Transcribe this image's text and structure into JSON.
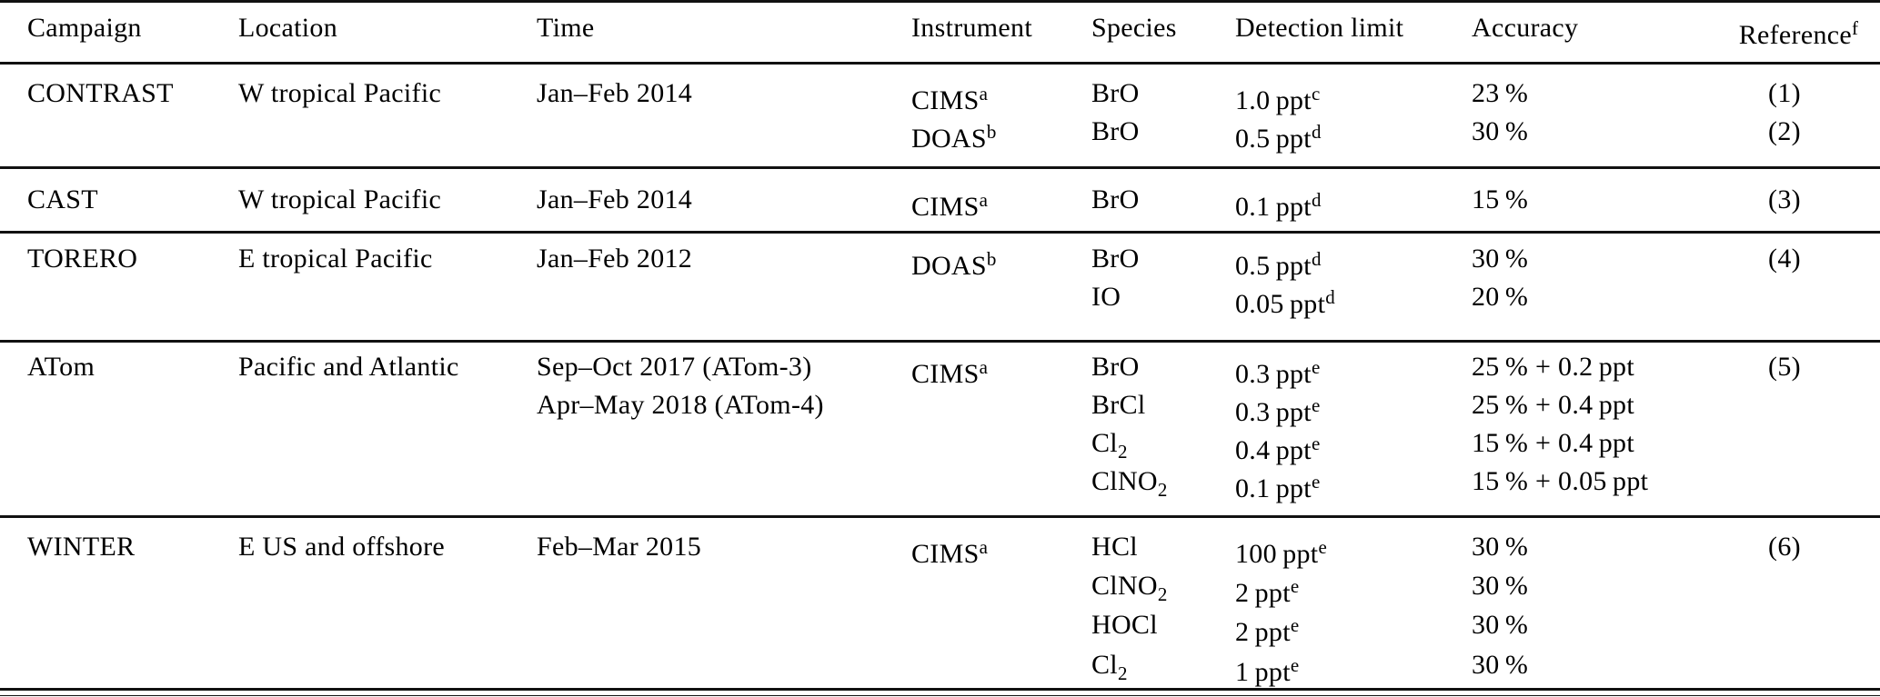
{
  "page": {
    "background": "#ffffff",
    "text_color": "#000000",
    "rule_color": "#111111"
  },
  "table": {
    "header": {
      "campaign": "Campaign",
      "location": "Location",
      "time": "Time",
      "instrument": "Instrument",
      "species": "Species",
      "detection_limit": "Detection limit",
      "accuracy": "Accuracy",
      "reference": "Reference",
      "reference_sup": "f"
    },
    "blocks": [
      {
        "campaign": "CONTRAST",
        "location": "W tropical Pacific",
        "time_lines": [
          "Jan–Feb 2014"
        ],
        "rows": [
          {
            "instrument": "CIMS",
            "instrument_sup": "a",
            "species": "BrO",
            "species_sub": "",
            "limit": "1.0 ppt",
            "limit_sup": "c",
            "accuracy": "23 %",
            "reference": "(1)"
          },
          {
            "instrument": "DOAS",
            "instrument_sup": "b",
            "species": "BrO",
            "species_sub": "",
            "limit": "0.5 ppt",
            "limit_sup": "d",
            "accuracy": "30 %",
            "reference": "(2)"
          }
        ]
      },
      {
        "campaign": "CAST",
        "location": "W tropical Pacific",
        "time_lines": [
          "Jan–Feb 2014"
        ],
        "rows": [
          {
            "instrument": "CIMS",
            "instrument_sup": "a",
            "species": "BrO",
            "species_sub": "",
            "limit": "0.1 ppt",
            "limit_sup": "d",
            "accuracy": "15 %",
            "reference": "(3)"
          }
        ]
      },
      {
        "campaign": "TORERO",
        "location": "E tropical Pacific",
        "time_lines": [
          "Jan–Feb 2012"
        ],
        "rows": [
          {
            "instrument": "DOAS",
            "instrument_sup": "b",
            "species": "BrO",
            "species_sub": "",
            "limit": "0.5 ppt",
            "limit_sup": "d",
            "accuracy": "30 %",
            "reference": "(4)"
          },
          {
            "instrument": "",
            "instrument_sup": "",
            "species": "IO",
            "species_sub": "",
            "limit": "0.05 ppt",
            "limit_sup": "d",
            "accuracy": "20 %",
            "reference": ""
          }
        ]
      },
      {
        "campaign": "ATom",
        "location": "Pacific and Atlantic",
        "time_lines": [
          "Sep–Oct 2017 (ATom-3)",
          "Apr–May 2018 (ATom-4)"
        ],
        "rows": [
          {
            "instrument": "CIMS",
            "instrument_sup": "a",
            "species": "BrO",
            "species_sub": "",
            "limit": "0.3 ppt",
            "limit_sup": "e",
            "accuracy": "25 % + 0.2 ppt",
            "reference": "(5)"
          },
          {
            "instrument": "",
            "instrument_sup": "",
            "species": "BrCl",
            "species_sub": "",
            "limit": "0.3 ppt",
            "limit_sup": "e",
            "accuracy": "25 % + 0.4 ppt",
            "reference": ""
          },
          {
            "instrument": "",
            "instrument_sup": "",
            "species": "Cl",
            "species_sub": "2",
            "limit": "0.4 ppt",
            "limit_sup": "e",
            "accuracy": "15 % + 0.4 ppt",
            "reference": ""
          },
          {
            "instrument": "",
            "instrument_sup": "",
            "species": "ClNO",
            "species_sub": "2",
            "limit": "0.1 ppt",
            "limit_sup": "e",
            "accuracy": "15 % + 0.05 ppt",
            "reference": ""
          }
        ]
      },
      {
        "campaign": "WINTER",
        "location": "E US and offshore",
        "time_lines": [
          "Feb–Mar 2015"
        ],
        "rows": [
          {
            "instrument": "CIMS",
            "instrument_sup": "a",
            "species": "HCl",
            "species_sub": "",
            "limit": "100 ppt",
            "limit_sup": "e",
            "accuracy": "30 %",
            "reference": "(6)"
          },
          {
            "instrument": "",
            "instrument_sup": "",
            "species": "ClNO",
            "species_sub": "2",
            "limit": "2 ppt",
            "limit_sup": "e",
            "accuracy": "30 %",
            "reference": ""
          },
          {
            "instrument": "",
            "instrument_sup": "",
            "species": "HOCl",
            "species_sub": "",
            "limit": "2 ppt",
            "limit_sup": "e",
            "accuracy": "30 %",
            "reference": ""
          },
          {
            "instrument": "",
            "instrument_sup": "",
            "species": "Cl",
            "species_sub": "2",
            "limit": "1 ppt",
            "limit_sup": "e",
            "accuracy": "30 %",
            "reference": ""
          }
        ]
      }
    ]
  }
}
